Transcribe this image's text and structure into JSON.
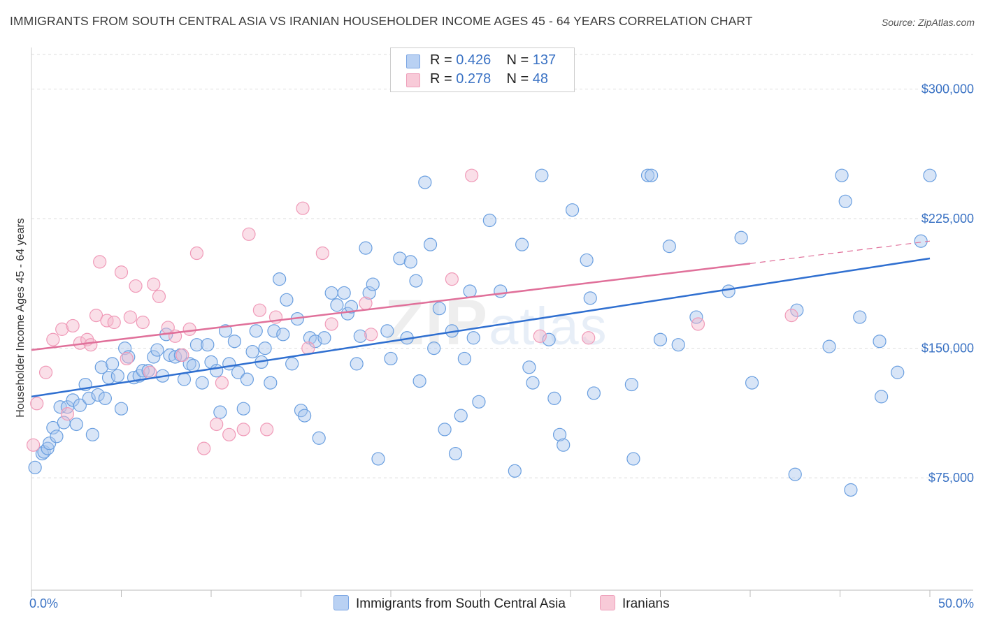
{
  "header": {
    "title": "IMMIGRANTS FROM SOUTH CENTRAL ASIA VS IRANIAN HOUSEHOLDER INCOME AGES 45 - 64 YEARS CORRELATION CHART",
    "source": "Source: ZipAtlas.com"
  },
  "watermark": {
    "zip": "ZIP",
    "atlas": "atlas"
  },
  "legend": {
    "series1": {
      "r_label": "R =",
      "r_value": "0.426",
      "n_label": "N =",
      "n_value": "137",
      "color": "#a9c6ee"
    },
    "series2": {
      "r_label": "R =",
      "r_value": "0.278",
      "n_label": "N =",
      "n_value": "48",
      "color": "#f5b9cb"
    }
  },
  "bottom_legend": {
    "series1": "Immigrants from South Central Asia",
    "series2": "Iranians"
  },
  "chart_data": {
    "type": "scatter",
    "ylabel": "Householder Income Ages 45 - 64 years",
    "xlim": [
      0,
      50
    ],
    "ylim": [
      10000,
      320000
    ],
    "x_tick_labels": {
      "left": "0.0%",
      "right": "50.0%"
    },
    "y_ticks": [
      75000,
      150000,
      225000,
      300000
    ],
    "y_tick_labels": [
      "$75,000",
      "$150,000",
      "$225,000",
      "$300,000"
    ],
    "grid": true,
    "series": [
      {
        "name": "Immigrants from South Central Asia",
        "color": "#6a9fe0",
        "trend": {
          "x0": 0,
          "y0": 122000,
          "x1": 50,
          "y1": 202000,
          "color": "#2f6fd0"
        },
        "points": [
          [
            0.2,
            81000
          ],
          [
            0.6,
            89000
          ],
          [
            0.7,
            90000
          ],
          [
            0.9,
            92000
          ],
          [
            1.0,
            95000
          ],
          [
            1.2,
            104000
          ],
          [
            1.4,
            99000
          ],
          [
            1.6,
            116000
          ],
          [
            1.8,
            107000
          ],
          [
            2.0,
            116000
          ],
          [
            2.3,
            120000
          ],
          [
            2.5,
            106000
          ],
          [
            2.7,
            117000
          ],
          [
            3.0,
            129000
          ],
          [
            3.2,
            121000
          ],
          [
            3.4,
            100000
          ],
          [
            3.7,
            123000
          ],
          [
            3.9,
            139000
          ],
          [
            4.1,
            121000
          ],
          [
            4.3,
            133000
          ],
          [
            4.5,
            141000
          ],
          [
            4.8,
            134000
          ],
          [
            5.0,
            115000
          ],
          [
            5.2,
            150000
          ],
          [
            5.4,
            145000
          ],
          [
            5.7,
            133000
          ],
          [
            6.0,
            134000
          ],
          [
            6.2,
            137000
          ],
          [
            6.5,
            137000
          ],
          [
            6.8,
            145000
          ],
          [
            7.0,
            149000
          ],
          [
            7.3,
            134000
          ],
          [
            7.5,
            158000
          ],
          [
            7.7,
            146000
          ],
          [
            8.0,
            145000
          ],
          [
            8.3,
            146000
          ],
          [
            8.5,
            132000
          ],
          [
            8.8,
            141000
          ],
          [
            9.0,
            140000
          ],
          [
            9.2,
            152000
          ],
          [
            9.5,
            130000
          ],
          [
            9.8,
            152000
          ],
          [
            10.0,
            142000
          ],
          [
            10.3,
            137000
          ],
          [
            10.5,
            113000
          ],
          [
            10.8,
            160000
          ],
          [
            11.0,
            141000
          ],
          [
            11.3,
            154000
          ],
          [
            11.5,
            136000
          ],
          [
            11.8,
            115000
          ],
          [
            12.0,
            132000
          ],
          [
            12.3,
            148000
          ],
          [
            12.5,
            160000
          ],
          [
            12.8,
            142000
          ],
          [
            13.0,
            150000
          ],
          [
            13.3,
            130000
          ],
          [
            13.5,
            160000
          ],
          [
            13.8,
            190000
          ],
          [
            14.0,
            158000
          ],
          [
            14.2,
            178000
          ],
          [
            14.5,
            141000
          ],
          [
            14.8,
            167000
          ],
          [
            15.0,
            114000
          ],
          [
            15.2,
            111000
          ],
          [
            15.5,
            156000
          ],
          [
            15.8,
            154000
          ],
          [
            16.0,
            98000
          ],
          [
            16.3,
            156000
          ],
          [
            16.7,
            182000
          ],
          [
            17.0,
            175000
          ],
          [
            17.4,
            182000
          ],
          [
            17.6,
            170000
          ],
          [
            17.8,
            174000
          ],
          [
            18.1,
            141000
          ],
          [
            18.3,
            157000
          ],
          [
            18.6,
            208000
          ],
          [
            18.8,
            182000
          ],
          [
            19.0,
            187000
          ],
          [
            19.3,
            86000
          ],
          [
            19.8,
            160000
          ],
          [
            20.0,
            144000
          ],
          [
            20.5,
            202000
          ],
          [
            20.9,
            156000
          ],
          [
            21.1,
            200000
          ],
          [
            21.4,
            189000
          ],
          [
            21.6,
            131000
          ],
          [
            21.9,
            246000
          ],
          [
            22.2,
            210000
          ],
          [
            22.4,
            150000
          ],
          [
            22.7,
            173000
          ],
          [
            23.0,
            103000
          ],
          [
            23.4,
            160000
          ],
          [
            23.6,
            89000
          ],
          [
            23.9,
            111000
          ],
          [
            24.1,
            144000
          ],
          [
            24.4,
            183000
          ],
          [
            24.6,
            156000
          ],
          [
            24.9,
            119000
          ],
          [
            25.5,
            224000
          ],
          [
            26.1,
            183000
          ],
          [
            26.9,
            79000
          ],
          [
            27.3,
            210000
          ],
          [
            27.7,
            139000
          ],
          [
            27.9,
            130000
          ],
          [
            28.4,
            250000
          ],
          [
            28.8,
            155000
          ],
          [
            29.1,
            121000
          ],
          [
            29.4,
            100000
          ],
          [
            29.6,
            94000
          ],
          [
            30.1,
            230000
          ],
          [
            30.9,
            201000
          ],
          [
            31.1,
            179000
          ],
          [
            31.3,
            124000
          ],
          [
            33.4,
            129000
          ],
          [
            33.5,
            86000
          ],
          [
            34.3,
            250000
          ],
          [
            34.5,
            250000
          ],
          [
            35.0,
            155000
          ],
          [
            35.5,
            209000
          ],
          [
            36.0,
            152000
          ],
          [
            37.0,
            168000
          ],
          [
            38.8,
            183000
          ],
          [
            39.5,
            214000
          ],
          [
            40.1,
            130000
          ],
          [
            42.5,
            77000
          ],
          [
            42.6,
            172000
          ],
          [
            44.4,
            151000
          ],
          [
            45.1,
            250000
          ],
          [
            45.3,
            235000
          ],
          [
            45.6,
            68000
          ],
          [
            46.1,
            168000
          ],
          [
            47.2,
            154000
          ],
          [
            47.3,
            122000
          ],
          [
            48.2,
            136000
          ],
          [
            49.5,
            212000
          ],
          [
            50.0,
            250000
          ]
        ]
      },
      {
        "name": "Iranians",
        "color": "#f09ab8",
        "trend": {
          "x0": 0,
          "y0": 149000,
          "x1": 40,
          "y1": 199000,
          "x2": 50,
          "y2": 212000,
          "color": "#e0709a"
        },
        "points": [
          [
            0.1,
            94000
          ],
          [
            0.3,
            118000
          ],
          [
            0.8,
            136000
          ],
          [
            1.2,
            155000
          ],
          [
            1.7,
            161000
          ],
          [
            2.0,
            112000
          ],
          [
            2.3,
            163000
          ],
          [
            2.7,
            153000
          ],
          [
            3.1,
            155000
          ],
          [
            3.3,
            152000
          ],
          [
            3.6,
            169000
          ],
          [
            3.8,
            200000
          ],
          [
            4.2,
            166000
          ],
          [
            4.6,
            165000
          ],
          [
            5.0,
            194000
          ],
          [
            5.3,
            144000
          ],
          [
            5.5,
            168000
          ],
          [
            5.8,
            186000
          ],
          [
            6.2,
            165000
          ],
          [
            6.6,
            136000
          ],
          [
            6.8,
            187000
          ],
          [
            7.1,
            180000
          ],
          [
            7.6,
            162000
          ],
          [
            8.0,
            157000
          ],
          [
            8.4,
            146000
          ],
          [
            8.8,
            161000
          ],
          [
            9.2,
            205000
          ],
          [
            9.6,
            92000
          ],
          [
            10.3,
            106000
          ],
          [
            10.6,
            130000
          ],
          [
            11.0,
            100000
          ],
          [
            11.8,
            103000
          ],
          [
            12.1,
            216000
          ],
          [
            12.7,
            172000
          ],
          [
            13.1,
            103000
          ],
          [
            13.6,
            168000
          ],
          [
            15.1,
            231000
          ],
          [
            15.4,
            150000
          ],
          [
            16.2,
            205000
          ],
          [
            16.7,
            164000
          ],
          [
            18.6,
            176000
          ],
          [
            18.9,
            158000
          ],
          [
            23.4,
            190000
          ],
          [
            24.5,
            250000
          ],
          [
            28.3,
            157000
          ],
          [
            31.0,
            156000
          ],
          [
            37.1,
            164000
          ],
          [
            42.3,
            169000
          ]
        ]
      }
    ]
  }
}
